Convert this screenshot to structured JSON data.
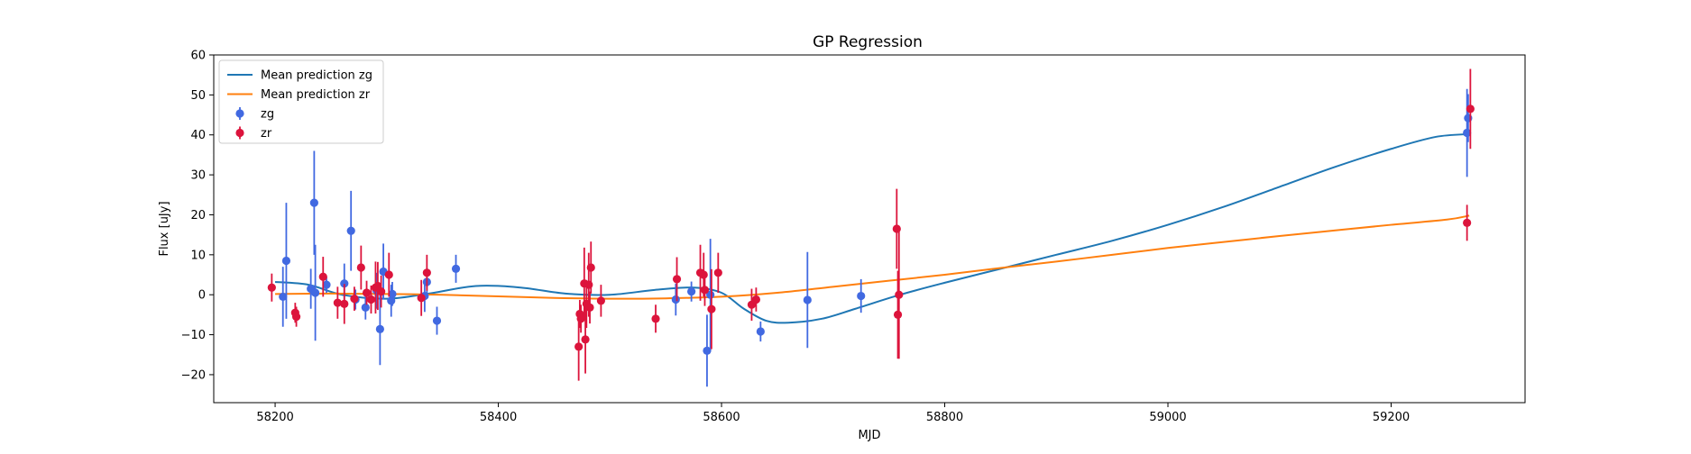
{
  "chart_data": {
    "type": "scatter",
    "title": "GP Regression",
    "xlabel": "MJD",
    "ylabel": "Flux [uJy]",
    "xlim": [
      58145,
      59320
    ],
    "ylim": [
      -27,
      60
    ],
    "xticks": [
      58200,
      58400,
      58600,
      58800,
      59000,
      59200
    ],
    "yticks": [
      -20,
      -10,
      0,
      10,
      20,
      30,
      40,
      50,
      60
    ],
    "grid": false,
    "legend": {
      "position": "top-left",
      "entries": [
        {
          "label": "Mean prediction zg",
          "kind": "line",
          "color": "#1f77b4"
        },
        {
          "label": "Mean prediction zr",
          "kind": "line",
          "color": "#ff7f0e"
        },
        {
          "label": "zg",
          "kind": "errorbar",
          "color": "#4169e1"
        },
        {
          "label": "zr",
          "kind": "errorbar",
          "color": "#dc143c"
        }
      ]
    },
    "series": [
      {
        "name": "Mean prediction zg",
        "kind": "line",
        "color": "#1f77b4",
        "x": [
          58200,
          58230,
          58260,
          58300,
          58340,
          58380,
          58420,
          58460,
          58500,
          58540,
          58575,
          58600,
          58620,
          58640,
          58660,
          58690,
          58720,
          58760,
          58800,
          58850,
          58900,
          58950,
          59000,
          59050,
          59100,
          59150,
          59200,
          59240,
          59270
        ],
        "y": [
          3.2,
          2.5,
          0,
          -1,
          0.4,
          2.2,
          1.8,
          0.3,
          0,
          1.2,
          1.8,
          0.5,
          -3.5,
          -6.5,
          -7.0,
          -6,
          -3.5,
          0,
          3,
          6.5,
          10,
          13.5,
          17.5,
          22,
          27,
          32,
          36.5,
          39.5,
          40.2
        ]
      },
      {
        "name": "Mean prediction zr",
        "kind": "line",
        "color": "#ff7f0e",
        "x": [
          58200,
          58250,
          58300,
          58350,
          58400,
          58450,
          58500,
          58550,
          58600,
          58650,
          58700,
          58750,
          58800,
          58850,
          58900,
          58950,
          59000,
          59050,
          59100,
          59150,
          59200,
          59250,
          59270
        ],
        "y": [
          0.2,
          0.3,
          0.2,
          0,
          -0.4,
          -0.8,
          -1.0,
          -0.9,
          -0.5,
          0.5,
          2,
          3.5,
          5,
          6.7,
          8.3,
          10,
          11.7,
          13.2,
          14.7,
          16.1,
          17.5,
          18.8,
          19.8
        ]
      },
      {
        "name": "zg",
        "kind": "errorbar",
        "color": "#4169e1",
        "points": [
          [
            58207,
            -0.5,
            7.5
          ],
          [
            58210,
            8.5,
            14.5
          ],
          [
            58232,
            1.5,
            5.0
          ],
          [
            58235,
            23,
            13
          ],
          [
            58236,
            0.5,
            12
          ],
          [
            58246,
            2.5,
            2.0
          ],
          [
            58262,
            2.8,
            5.0
          ],
          [
            58268,
            16,
            10
          ],
          [
            58272,
            -1.2,
            2.5
          ],
          [
            58281,
            -3.2,
            3.0
          ],
          [
            58291,
            1,
            4.5
          ],
          [
            58294,
            -8.6,
            9.0
          ],
          [
            58297,
            5.8,
            7.0
          ],
          [
            58304,
            -1.5,
            4.0
          ],
          [
            58305,
            0.2,
            3.0
          ],
          [
            58334,
            -0.3,
            4.0
          ],
          [
            58336,
            3.2,
            3.5
          ],
          [
            58345,
            -6.5,
            3.5
          ],
          [
            58362,
            6.5,
            3.5
          ],
          [
            58559,
            -1.2,
            4.0
          ],
          [
            58573,
            0.8,
            2.5
          ],
          [
            58587,
            -14,
            9.0
          ],
          [
            58590,
            0,
            14
          ],
          [
            58635,
            -9.2,
            2.5
          ],
          [
            58677,
            -1.3,
            12
          ],
          [
            58725,
            -0.3,
            4.2
          ],
          [
            59268,
            40.5,
            11
          ],
          [
            59269,
            44.2,
            6.0
          ]
        ]
      },
      {
        "name": "zr",
        "kind": "errorbar",
        "color": "#dc143c",
        "points": [
          [
            58197,
            1.8,
            3.5
          ],
          [
            58218,
            -4.5,
            2.5
          ],
          [
            58219,
            -5.5,
            2.5
          ],
          [
            58243,
            4.5,
            5.0
          ],
          [
            58256,
            -2,
            4.0
          ],
          [
            58262,
            -2.3,
            5.0
          ],
          [
            58271,
            -1.0,
            3.0
          ],
          [
            58277,
            6.8,
            5.5
          ],
          [
            58282,
            0.5,
            3.0
          ],
          [
            58286,
            -1.2,
            3.5
          ],
          [
            58290,
            1.8,
            6.5
          ],
          [
            58292,
            2.2,
            6.0
          ],
          [
            58295,
            0.8,
            4.0
          ],
          [
            58302,
            5,
            5.5
          ],
          [
            58331,
            -0.8,
            4.5
          ],
          [
            58336,
            5.5,
            4.5
          ],
          [
            58472,
            -13,
            8.5
          ],
          [
            58473,
            -4.8,
            3.5
          ],
          [
            58474,
            -6,
            3.5
          ],
          [
            58477,
            2.8,
            9.0
          ],
          [
            58478,
            -11.2,
            8.5
          ],
          [
            58479,
            -2.3,
            6.0
          ],
          [
            58481,
            2.5,
            8.0
          ],
          [
            58482,
            -3.2,
            4.0
          ],
          [
            58483,
            6.8,
            6.5
          ],
          [
            58492,
            -1.5,
            4.0
          ],
          [
            58541,
            -6,
            3.5
          ],
          [
            58560,
            3.9,
            5.5
          ],
          [
            58581,
            5.5,
            7.0
          ],
          [
            58584,
            5.0,
            5.5
          ],
          [
            58585,
            1.2,
            4.0
          ],
          [
            58591,
            -3.6,
            10
          ],
          [
            58597,
            5.5,
            5.0
          ],
          [
            58627,
            -2.5,
            4.0
          ],
          [
            58631,
            -1.2,
            3.0
          ],
          [
            58757,
            16.5,
            10
          ],
          [
            58758,
            -5,
            11
          ],
          [
            58759,
            0,
            16
          ],
          [
            59268,
            18,
            4.5
          ],
          [
            59271,
            46.5,
            10
          ]
        ]
      }
    ]
  }
}
